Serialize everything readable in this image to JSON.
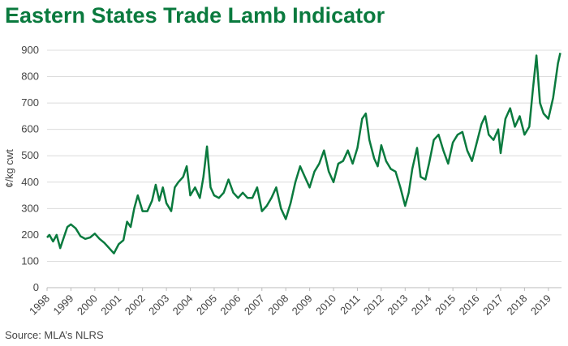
{
  "chart_data": {
    "type": "line",
    "title": "Eastern States Trade Lamb Indicator",
    "y_label": "¢/kg cwt",
    "source": "Source: MLA’s NLRS",
    "x": [
      1998.0,
      1998.1,
      1998.25,
      1998.4,
      1998.55,
      1998.7,
      1998.85,
      1999.0,
      1999.2,
      1999.4,
      1999.6,
      1999.8,
      2000.0,
      2000.2,
      2000.4,
      2000.6,
      2000.8,
      2001.0,
      2001.2,
      2001.35,
      2001.5,
      2001.65,
      2001.8,
      2002.0,
      2002.2,
      2002.4,
      2002.55,
      2002.7,
      2002.85,
      2003.0,
      2003.2,
      2003.35,
      2003.5,
      2003.7,
      2003.85,
      2004.0,
      2004.2,
      2004.4,
      2004.55,
      2004.7,
      2004.85,
      2005.0,
      2005.2,
      2005.4,
      2005.6,
      2005.8,
      2006.0,
      2006.2,
      2006.4,
      2006.6,
      2006.8,
      2007.0,
      2007.2,
      2007.4,
      2007.6,
      2007.8,
      2008.0,
      2008.2,
      2008.4,
      2008.6,
      2008.8,
      2009.0,
      2009.2,
      2009.4,
      2009.6,
      2009.8,
      2010.0,
      2010.2,
      2010.4,
      2010.6,
      2010.8,
      2011.0,
      2011.2,
      2011.35,
      2011.5,
      2011.7,
      2011.85,
      2012.0,
      2012.2,
      2012.4,
      2012.6,
      2012.8,
      2013.0,
      2013.15,
      2013.3,
      2013.5,
      2013.65,
      2013.85,
      2014.0,
      2014.2,
      2014.4,
      2014.6,
      2014.8,
      2015.0,
      2015.2,
      2015.4,
      2015.6,
      2015.8,
      2016.0,
      2016.2,
      2016.35,
      2016.5,
      2016.7,
      2016.9,
      2017.0,
      2017.2,
      2017.4,
      2017.6,
      2017.8,
      2018.0,
      2018.2,
      2018.35,
      2018.5,
      2018.65,
      2018.8,
      2019.0,
      2019.2,
      2019.4,
      2019.5
    ],
    "series": [
      {
        "name": "Eastern States Trade Lamb Indicator",
        "color": "#0a7a3e",
        "values": [
          190,
          200,
          175,
          200,
          150,
          190,
          230,
          240,
          225,
          195,
          185,
          190,
          205,
          185,
          170,
          150,
          130,
          165,
          180,
          250,
          230,
          300,
          350,
          290,
          290,
          330,
          390,
          330,
          380,
          320,
          290,
          380,
          400,
          420,
          460,
          350,
          380,
          340,
          420,
          535,
          380,
          350,
          340,
          360,
          410,
          360,
          340,
          360,
          340,
          340,
          380,
          290,
          310,
          340,
          380,
          300,
          260,
          320,
          400,
          460,
          420,
          380,
          440,
          470,
          520,
          440,
          400,
          470,
          480,
          520,
          470,
          530,
          640,
          660,
          560,
          490,
          460,
          540,
          480,
          450,
          440,
          380,
          310,
          360,
          450,
          530,
          420,
          410,
          470,
          560,
          580,
          520,
          470,
          550,
          580,
          590,
          520,
          480,
          550,
          620,
          650,
          580,
          560,
          600,
          510,
          640,
          680,
          610,
          650,
          580,
          610,
          750,
          880,
          700,
          660,
          640,
          720,
          850,
          890
        ]
      }
    ],
    "xlim": [
      1998,
      2019.55
    ],
    "xticks": [
      1998,
      1999,
      2000,
      2001,
      2002,
      2003,
      2004,
      2005,
      2006,
      2007,
      2008,
      2009,
      2010,
      2011,
      2012,
      2013,
      2014,
      2015,
      2016,
      2017,
      2018,
      2019
    ],
    "ylim": [
      0,
      900
    ],
    "yticks": [
      0,
      100,
      200,
      300,
      400,
      500,
      600,
      700,
      800,
      900
    ],
    "grid": true
  }
}
